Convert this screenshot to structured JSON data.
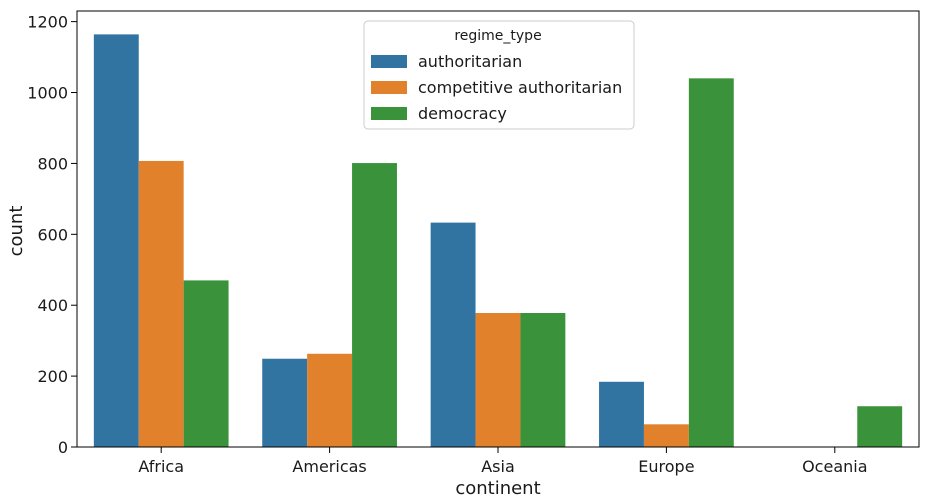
{
  "chart_data": {
    "type": "bar",
    "xlabel": "continent",
    "ylabel": "count",
    "categories": [
      "Africa",
      "Americas",
      "Asia",
      "Europe",
      "Oceania"
    ],
    "ylim": [
      0,
      1230
    ],
    "yticks": [
      0,
      200,
      400,
      600,
      800,
      1000,
      1200
    ],
    "legend": {
      "title": "regime_type",
      "placement": "top-center"
    },
    "series": [
      {
        "name": "authoritarian",
        "color": "#3274a1",
        "values": [
          1164,
          249,
          633,
          184,
          0
        ]
      },
      {
        "name": "competitive authoritarian",
        "color": "#e1812c",
        "values": [
          807,
          263,
          378,
          64,
          0
        ]
      },
      {
        "name": "democracy",
        "color": "#3a923a",
        "values": [
          470,
          801,
          378,
          1040,
          115
        ]
      }
    ]
  }
}
